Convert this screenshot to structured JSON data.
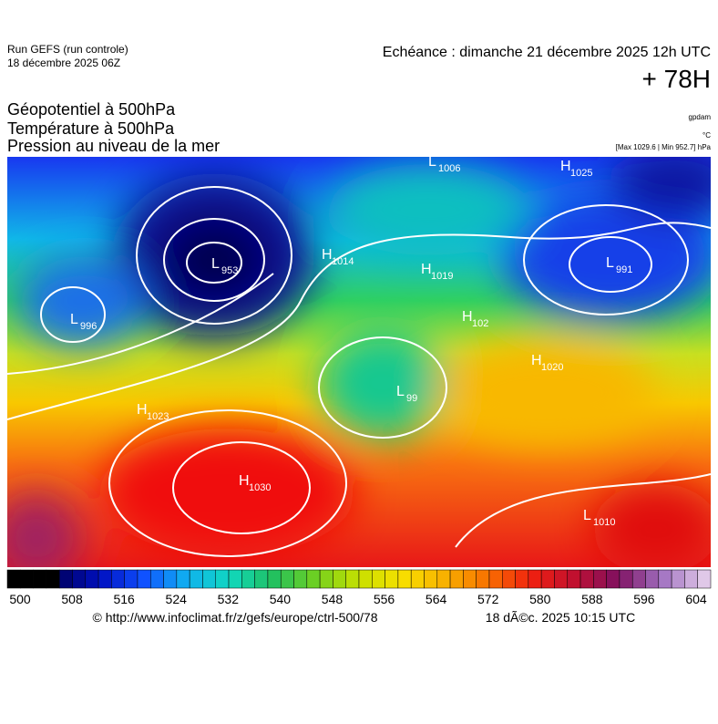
{
  "header": {
    "run": "Run GEFS (run controle)",
    "run_date": "18 décembre 2025 06Z",
    "valid": "Echéance : dimanche 21 décembre 2025 12h UTC",
    "lead": "+ 78H"
  },
  "legend": {
    "lines": [
      "Géopotentiel à 500hPa",
      "Température à 500hPa",
      "Pression au niveau de la mer"
    ],
    "unit_geo": "gpdam",
    "unit_temp": "°C",
    "range": "[Max 1029.6 | Min 952.7] hPa"
  },
  "centers": [
    {
      "kind": "L",
      "value": "1006"
    },
    {
      "kind": "H",
      "value": "1025"
    },
    {
      "kind": "L",
      "value": "953"
    },
    {
      "kind": "H",
      "value": "1014"
    },
    {
      "kind": "H",
      "value": "1019"
    },
    {
      "kind": "L",
      "value": "991"
    },
    {
      "kind": "L",
      "value": "996"
    },
    {
      "kind": "H",
      "value": "102"
    },
    {
      "kind": "L",
      "value": "99"
    },
    {
      "kind": "H",
      "value": "1020"
    },
    {
      "kind": "H",
      "value": "1023"
    },
    {
      "kind": "H",
      "value": "1030"
    },
    {
      "kind": "L",
      "value": "1010"
    }
  ],
  "colorbar": {
    "ticks": [
      "500",
      "508",
      "516",
      "524",
      "532",
      "540",
      "548",
      "556",
      "564",
      "572",
      "580",
      "588",
      "596",
      "604"
    ]
  },
  "footer": {
    "url": "© http://www.infoclimat.fr/z/gefs/europe/ctrl-500/78",
    "time": "18 dÃ©c. 2025 10:15 UTC"
  }
}
